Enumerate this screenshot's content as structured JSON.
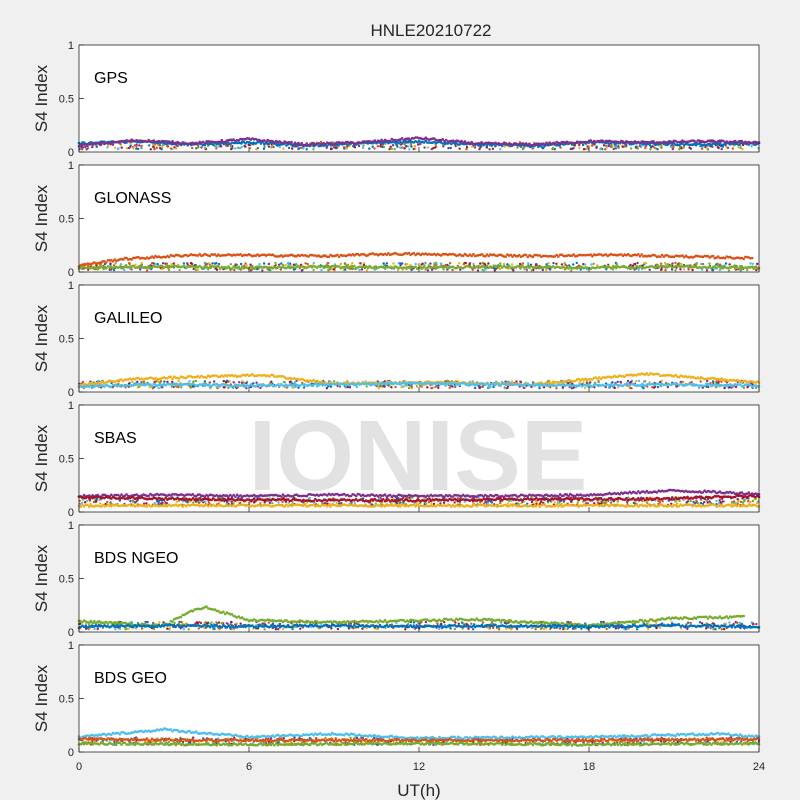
{
  "title": "HNLE20210722",
  "watermark": "IONISE",
  "chart_data": {
    "type": "scatter",
    "title": "HNLE20210722",
    "xlabel": "UT(h)",
    "xlim": [
      0,
      24
    ],
    "xticks": [
      "0",
      "6",
      "12",
      "18",
      "24"
    ],
    "ylim": [
      0,
      1
    ],
    "yticks": [
      "0",
      "0.5",
      "1"
    ],
    "grid": false,
    "series_colors": [
      "#0072BD",
      "#D95319",
      "#EDB120",
      "#7E2F8E",
      "#77AC30",
      "#4DBEEE",
      "#A2142F"
    ],
    "panels": [
      {
        "label": "GPS",
        "ylabel": "S4 Index",
        "baseline": 0.06,
        "series": [
          {
            "values": [
              [
                0,
                0.08
              ],
              [
                2,
                0.1
              ],
              [
                4,
                0.07
              ],
              [
                6,
                0.09
              ],
              [
                8,
                0.06
              ],
              [
                10,
                0.08
              ],
              [
                12,
                0.1
              ],
              [
                14,
                0.07
              ],
              [
                16,
                0.06
              ],
              [
                18,
                0.09
              ],
              [
                20,
                0.08
              ],
              [
                22,
                0.07
              ],
              [
                24,
                0.08
              ]
            ]
          },
          {
            "values": [
              [
                0,
                0.06
              ],
              [
                2,
                0.11
              ],
              [
                4,
                0.08
              ],
              [
                6,
                0.12
              ],
              [
                8,
                0.07
              ],
              [
                10,
                0.09
              ],
              [
                12,
                0.13
              ],
              [
                14,
                0.08
              ],
              [
                16,
                0.07
              ],
              [
                18,
                0.1
              ],
              [
                20,
                0.09
              ],
              [
                22,
                0.1
              ],
              [
                24,
                0.09
              ]
            ]
          }
        ]
      },
      {
        "label": "GLONASS",
        "ylabel": "S4 Index",
        "baseline": 0.05,
        "series": [
          {
            "values": [
              [
                0,
                0.06
              ],
              [
                1.5,
                0.12
              ],
              [
                4,
                0.16
              ],
              [
                9,
                0.15
              ],
              [
                11,
                0.17
              ],
              [
                16,
                0.15
              ],
              [
                19,
                0.16
              ],
              [
                23.8,
                0.13
              ]
            ]
          },
          {
            "values": [
              [
                0,
                0.04
              ],
              [
                3,
                0.05
              ],
              [
                6,
                0.04
              ],
              [
                9,
                0.05
              ],
              [
                12,
                0.04
              ],
              [
                15,
                0.05
              ],
              [
                18,
                0.04
              ],
              [
                21,
                0.05
              ],
              [
                24,
                0.04
              ]
            ]
          }
        ]
      },
      {
        "label": "GALILEO",
        "ylabel": "S4 Index",
        "baseline": 0.07,
        "series": [
          {
            "values": [
              [
                0,
                0.06
              ],
              [
                1.8,
                0.12
              ],
              [
                6.5,
                0.16
              ],
              [
                9,
                0.08
              ],
              [
                12,
                0.09
              ],
              [
                16,
                0.07
              ],
              [
                20,
                0.17
              ],
              [
                24,
                0.09
              ]
            ]
          },
          {
            "values": [
              [
                0,
                0.05
              ],
              [
                3,
                0.07
              ],
              [
                6,
                0.06
              ],
              [
                9,
                0.07
              ],
              [
                12,
                0.08
              ],
              [
                15,
                0.07
              ],
              [
                18,
                0.06
              ],
              [
                21,
                0.07
              ],
              [
                24,
                0.06
              ]
            ]
          }
        ]
      },
      {
        "label": "SBAS",
        "ylabel": "S4 Index",
        "baseline": 0.1,
        "series": [
          {
            "values": [
              [
                0,
                0.15
              ],
              [
                3,
                0.16
              ],
              [
                6,
                0.15
              ],
              [
                9,
                0.16
              ],
              [
                12,
                0.15
              ],
              [
                15,
                0.15
              ],
              [
                18,
                0.16
              ],
              [
                21,
                0.2
              ],
              [
                24,
                0.17
              ]
            ]
          },
          {
            "values": [
              [
                0,
                0.14
              ],
              [
                4,
                0.12
              ],
              [
                8,
                0.11
              ],
              [
                12,
                0.11
              ],
              [
                16,
                0.12
              ],
              [
                20,
                0.12
              ],
              [
                24,
                0.15
              ]
            ]
          },
          {
            "values": [
              [
                0,
                0.06
              ],
              [
                6,
                0.06
              ],
              [
                12,
                0.06
              ],
              [
                18,
                0.06
              ],
              [
                24,
                0.06
              ]
            ]
          }
        ]
      },
      {
        "label": "BDS NGEO",
        "ylabel": "S4 Index",
        "baseline": 0.06,
        "series": [
          {
            "values": [
              [
                0,
                0.1
              ],
              [
                3,
                0.06
              ],
              [
                4,
                0.2
              ],
              [
                4.5,
                0.23
              ],
              [
                6,
                0.11
              ],
              [
                9,
                0.09
              ],
              [
                14,
                0.12
              ],
              [
                18,
                0.06
              ],
              [
                21,
                0.13
              ],
              [
                23.5,
                0.14
              ]
            ]
          },
          {
            "values": [
              [
                0,
                0.05
              ],
              [
                3,
                0.06
              ],
              [
                6,
                0.05
              ],
              [
                9,
                0.06
              ],
              [
                12,
                0.05
              ],
              [
                15,
                0.06
              ],
              [
                18,
                0.05
              ],
              [
                21,
                0.06
              ],
              [
                24,
                0.05
              ]
            ]
          }
        ]
      },
      {
        "label": "BDS GEO",
        "ylabel": "S4 Index",
        "baseline": 0.1,
        "series": [
          {
            "values": [
              [
                0,
                0.14
              ],
              [
                3,
                0.21
              ],
              [
                6,
                0.14
              ],
              [
                9,
                0.17
              ],
              [
                12,
                0.13
              ],
              [
                18,
                0.14
              ],
              [
                22.5,
                0.17
              ],
              [
                24,
                0.14
              ]
            ]
          },
          {
            "values": [
              [
                0,
                0.12
              ],
              [
                6,
                0.11
              ],
              [
                12,
                0.11
              ],
              [
                18,
                0.11
              ],
              [
                24,
                0.12
              ]
            ]
          },
          {
            "values": [
              [
                0,
                0.08
              ],
              [
                6,
                0.07
              ],
              [
                12,
                0.08
              ],
              [
                18,
                0.07
              ],
              [
                24,
                0.08
              ]
            ]
          }
        ]
      }
    ]
  }
}
